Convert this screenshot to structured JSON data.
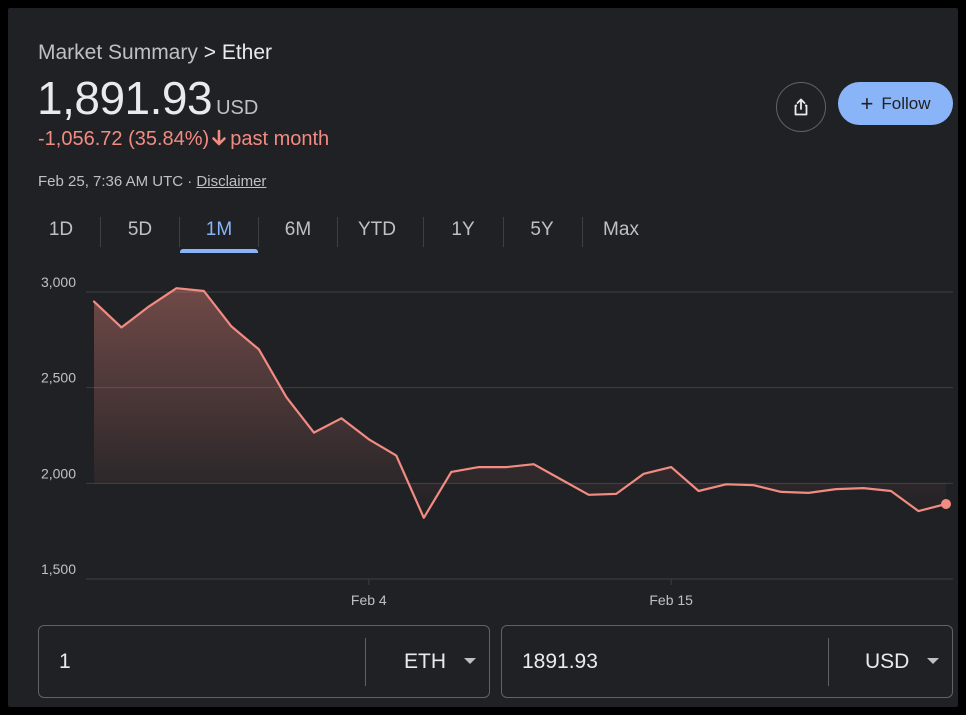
{
  "header": {
    "breadcrumb_parent": "Market Summary",
    "breadcrumb_separator": ">",
    "breadcrumb_current": "Ether",
    "price": "1,891.93",
    "currency": "USD",
    "change": "-1,056.72 (35.84%)",
    "change_period": "past month",
    "timestamp": "Feb 25, 7:36 AM UTC",
    "meta_separator": "·",
    "disclaimer_label": "Disclaimer"
  },
  "actions": {
    "share_icon": "share-icon",
    "follow_label": "Follow",
    "follow_icon": "+"
  },
  "tabs": [
    {
      "label": "1D",
      "active": false
    },
    {
      "label": "5D",
      "active": false
    },
    {
      "label": "1M",
      "active": true
    },
    {
      "label": "6M",
      "active": false
    },
    {
      "label": "YTD",
      "active": false
    },
    {
      "label": "1Y",
      "active": false
    },
    {
      "label": "5Y",
      "active": false
    },
    {
      "label": "Max",
      "active": false
    }
  ],
  "colors": {
    "background": "#202124",
    "line": "#f28b82",
    "negative": "#f28b82",
    "accent": "#8ab4f8",
    "text": "#e8eaed",
    "muted_text": "#bdc1c6",
    "grid": "#3c4043"
  },
  "chart_data": {
    "type": "line",
    "title": "",
    "xlabel": "",
    "ylabel": "",
    "x_start": "Jan 25",
    "x_end": "Feb 25",
    "x_tick_labels": [
      {
        "label": "Feb 4",
        "day": 10
      },
      {
        "label": "Feb 15",
        "day": 21
      }
    ],
    "y_ticks": [
      1500,
      2000,
      2500,
      3000
    ],
    "y_tick_labels": [
      "1,500",
      "2,000",
      "2,500",
      "3,000"
    ],
    "ylim": [
      1500,
      3000
    ],
    "grid": true,
    "days": [
      0,
      1,
      2,
      3,
      4,
      5,
      6,
      7,
      8,
      9,
      10,
      11,
      12,
      13,
      14,
      15,
      16,
      17,
      18,
      19,
      20,
      21,
      22,
      23,
      24,
      25,
      26,
      27,
      28,
      29,
      30,
      31
    ],
    "values": [
      2950,
      2815,
      2925,
      3020,
      3005,
      2820,
      2700,
      2450,
      2265,
      2340,
      2230,
      2145,
      1820,
      2060,
      2085,
      2085,
      2100,
      2020,
      1940,
      1945,
      2050,
      2085,
      1960,
      1995,
      1990,
      1955,
      1950,
      1970,
      1975,
      1960,
      1855,
      1891.93
    ]
  },
  "converter": {
    "from_value": "1",
    "from_unit": "ETH",
    "to_value": "1891.93",
    "to_unit": "USD"
  }
}
